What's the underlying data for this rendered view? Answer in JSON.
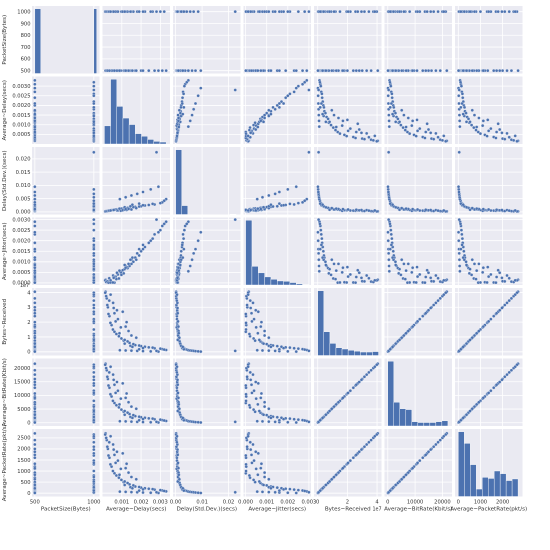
{
  "chart_data": {
    "type": "scatter",
    "subtype": "pairplot",
    "diagonal": "histogram",
    "grid": true,
    "colors": {
      "marker": "#4c72b0",
      "panel_background": "#eaeaf2",
      "grid": "#ffffff"
    },
    "variables": [
      {
        "key": "packet_size",
        "label": "PacketSize(Bytes)",
        "range": [
          476,
          1048
        ],
        "y_ticks": [
          500,
          600,
          700,
          800,
          900,
          1000
        ],
        "x_ticks": [
          500,
          1000
        ],
        "x_tick_labels": [
          "500",
          "1000"
        ],
        "offset_label": ""
      },
      {
        "key": "avg_delay",
        "label": "Average~Delay(secs)",
        "range": [
          0,
          0.0035
        ],
        "y_ticks": [
          0.0005,
          0.001,
          0.0015,
          0.002,
          0.0025,
          0.003
        ],
        "y_tick_labels": [
          "0.0005",
          "0.0010",
          "0.0015",
          "0.0020",
          "0.0025",
          "0.0030"
        ],
        "x_ticks": [
          0.001,
          0.002,
          0.003
        ],
        "x_tick_labels": [
          "0.001",
          "0.002",
          "0.003"
        ],
        "offset_label": ""
      },
      {
        "key": "delay_std",
        "label": "Delay(Std.Dev.)(secs)",
        "range": [
          -0.001,
          0.0245
        ],
        "y_ticks": [
          0,
          0.005,
          0.01,
          0.015,
          0.02
        ],
        "y_tick_labels": [
          "0.000",
          "0.005",
          "0.010",
          "0.015",
          "0.020"
        ],
        "x_ticks": [
          0,
          0.01,
          0.02
        ],
        "x_tick_labels": [
          "0.00",
          "0.01",
          "0.02"
        ],
        "offset_label": ""
      },
      {
        "key": "avg_jitter",
        "label": "Average~Jitter(secs)",
        "range": [
          -0.0001,
          0.0031
        ],
        "y_ticks": [
          0,
          0.0005,
          0.001,
          0.0015,
          0.002,
          0.0025,
          0.003
        ],
        "y_tick_labels": [
          "0.0000",
          "0.0005",
          "0.0010",
          "0.0015",
          "0.0020",
          "0.0025",
          "0.0030"
        ],
        "x_ticks": [
          0,
          0.001,
          0.002,
          0.003
        ],
        "x_tick_labels": [
          "0.000",
          "0.001",
          "0.002",
          "0.003"
        ],
        "offset_label": ""
      },
      {
        "key": "bytes_received",
        "label": "Bytes~Received",
        "range": [
          -2500000,
          43000000
        ],
        "y_ticks": [
          0,
          10000000,
          20000000,
          30000000,
          40000000
        ],
        "y_tick_labels": [
          "0",
          "1",
          "2",
          "3",
          "4"
        ],
        "x_ticks": [
          0,
          20000000,
          40000000
        ],
        "x_tick_labels": [
          "0",
          "2",
          "4"
        ],
        "offset_label": "1e7"
      },
      {
        "key": "avg_bitrate",
        "label": "Average~BitRate(Kbit/s)",
        "range": [
          -1200,
          23500
        ],
        "y_ticks": [
          0,
          5000,
          10000,
          15000,
          20000
        ],
        "y_tick_labels": [
          "0",
          "5000",
          "10000",
          "15000",
          "20000"
        ],
        "x_ticks": [
          0,
          10000,
          20000
        ],
        "x_tick_labels": [
          "0",
          "10000",
          "20000"
        ],
        "offset_label": ""
      },
      {
        "key": "avg_packetrate",
        "label": "Average~PacketRate(pkt/s)",
        "range": [
          -150,
          2900
        ],
        "y_ticks": [
          0,
          500,
          1000,
          1500,
          2000,
          2500
        ],
        "y_tick_labels": [
          "0",
          "500",
          "1000",
          "1500",
          "2000",
          "2500"
        ],
        "x_ticks": [
          0,
          1000,
          2000
        ],
        "x_tick_labels": [
          "0",
          "1000",
          "2000"
        ],
        "offset_label": ""
      }
    ],
    "histograms": [
      {
        "bins": [
          500,
          550,
          600,
          650,
          700,
          750,
          800,
          850,
          900,
          950,
          1000,
          1024
        ],
        "counts": [
          150,
          0,
          0,
          0,
          0,
          0,
          0,
          0,
          0,
          0,
          150
        ]
      },
      {
        "bins": [
          0.0001,
          0.00042,
          0.00074,
          0.00106,
          0.00138,
          0.0017,
          0.00202,
          0.00234,
          0.00266,
          0.00298,
          0.0033
        ],
        "counts": [
          28,
          100,
          58,
          40,
          30,
          16,
          12,
          7,
          4,
          3
        ]
      },
      {
        "bins": [
          0,
          0.00228,
          0.00456,
          0.00684,
          0.00912,
          0.0114,
          0.01368,
          0.01596,
          0.01824,
          0.02052,
          0.0228
        ],
        "counts": [
          262,
          36,
          0,
          0,
          0,
          0,
          0,
          0,
          0,
          1
        ]
      },
      {
        "bins": [
          0,
          0.0003,
          0.0006,
          0.0009,
          0.0012,
          0.0015,
          0.0018,
          0.0021,
          0.0024,
          0.0027,
          0.003
        ],
        "counts": [
          160,
          46,
          30,
          20,
          14,
          10,
          9,
          6,
          3,
          1
        ]
      },
      {
        "bins": [
          0,
          4100000,
          8200000,
          12300000,
          16400000,
          20500000,
          24600000,
          28700000,
          32800000,
          36900000,
          41000000
        ],
        "counts": [
          150,
          55,
          28,
          18,
          15,
          12,
          10,
          8,
          8,
          9
        ]
      },
      {
        "bins": [
          0,
          2200,
          4400,
          6600,
          8800,
          11000,
          13200,
          15400,
          17600,
          19800,
          22000
        ],
        "counts": [
          150,
          55,
          40,
          38,
          10,
          8,
          8,
          8,
          10,
          12
        ]
      },
      {
        "bins": [
          0,
          270,
          540,
          810,
          1080,
          1350,
          1620,
          1890,
          2160,
          2430,
          2700
        ],
        "counts": [
          122,
          100,
          60,
          14,
          36,
          34,
          48,
          43,
          30,
          33
        ]
      }
    ],
    "points": {
      "columns": [
        "packet_size",
        "avg_delay",
        "delay_std",
        "avg_jitter",
        "bytes_received",
        "avg_bitrate",
        "avg_packetrate"
      ],
      "rows": [
        [
          500,
          0.00016,
          0.00019,
          0.00015,
          40500000,
          21600,
          2700
        ],
        [
          1000,
          0.00014,
          0.00016,
          0.00012,
          39800000,
          21200,
          2650
        ],
        [
          500,
          0.00022,
          0.00027,
          6e-05,
          36000000,
          19200,
          2400
        ],
        [
          1000,
          0.00019,
          0.00022,
          4e-05,
          37500000,
          20000,
          2500
        ],
        [
          500,
          0.00028,
          0.00036,
          8e-05,
          30000000,
          16000,
          2000
        ],
        [
          1000,
          0.00025,
          0.00031,
          7e-05,
          31500000,
          16800,
          2100
        ],
        [
          500,
          0.00036,
          0.00048,
          2e-05,
          24000000,
          12800,
          1600
        ],
        [
          1000,
          0.00031,
          0.00042,
          1e-05,
          25500000,
          13600,
          1700
        ],
        [
          500,
          0.00047,
          0.00063,
          3e-05,
          18000000,
          9600,
          1200
        ],
        [
          1000,
          0.00041,
          0.00055,
          2e-05,
          19500000,
          10400,
          1300
        ],
        [
          500,
          0.00062,
          0.00085,
          1e-05,
          13500000,
          7200,
          900
        ],
        [
          1000,
          0.00054,
          0.00072,
          2e-05,
          15000000,
          8000,
          1000
        ],
        [
          500,
          0.00085,
          0.0011,
          0.00021,
          10500000,
          5600,
          700
        ],
        [
          1000,
          0.00072,
          0.00095,
          0.00018,
          12000000,
          6400,
          800
        ],
        [
          500,
          0.0011,
          0.0013,
          0.00045,
          7500000,
          4000,
          500
        ],
        [
          1000,
          0.00098,
          0.0012,
          0.00038,
          9000000,
          4800,
          600
        ],
        [
          500,
          0.0014,
          0.0016,
          0.0008,
          6000000,
          3200,
          400
        ],
        [
          1000,
          0.0013,
          0.0015,
          0.0007,
          7000000,
          3700,
          460
        ],
        [
          500,
          0.0017,
          0.0019,
          0.0012,
          4500000,
          2400,
          300
        ],
        [
          1000,
          0.0016,
          0.0018,
          0.001,
          5200000,
          2800,
          350
        ],
        [
          500,
          0.002,
          0.0021,
          0.0015,
          3800000,
          2000,
          250
        ],
        [
          1000,
          0.0019,
          0.002,
          0.0013,
          4200000,
          2200,
          280
        ],
        [
          500,
          0.0024,
          0.0026,
          0.0019,
          3000000,
          1600,
          200
        ],
        [
          1000,
          0.0022,
          0.0024,
          0.0017,
          3400000,
          1800,
          225
        ],
        [
          500,
          0.0027,
          0.0028,
          0.0023,
          2400000,
          1280,
          160
        ],
        [
          1000,
          0.0026,
          0.003,
          0.0021,
          2800000,
          1500,
          185
        ],
        [
          500,
          0.0031,
          0.0036,
          0.0027,
          1800000,
          960,
          120
        ],
        [
          1000,
          0.003,
          0.0033,
          0.0025,
          2100000,
          1120,
          140
        ],
        [
          500,
          0.0033,
          0.0048,
          0.0029,
          1200000,
          640,
          80
        ],
        [
          1000,
          0.0032,
          0.0042,
          0.0028,
          1500000,
          800,
          100
        ],
        [
          500,
          0.0009,
          0.0048,
          0.00055,
          1050000,
          560,
          70
        ],
        [
          1000,
          0.0012,
          0.0055,
          0.0008,
          900000,
          480,
          60
        ],
        [
          500,
          0.0015,
          0.0062,
          0.0011,
          750000,
          400,
          50
        ],
        [
          1000,
          0.0018,
          0.0068,
          0.0014,
          600000,
          320,
          40
        ],
        [
          500,
          0.0021,
          0.0075,
          0.0016,
          450000,
          240,
          30
        ],
        [
          1000,
          0.0025,
          0.0085,
          0.002,
          300000,
          160,
          20
        ],
        [
          500,
          0.0029,
          0.0095,
          0.0024,
          150000,
          80,
          10
        ],
        [
          1000,
          0.0008,
          0.0005,
          0.0004,
          22000000,
          11700,
          1470
        ],
        [
          500,
          0.00095,
          0.0004,
          0.0005,
          16500000,
          8800,
          1100
        ],
        [
          1000,
          0.00105,
          0.0006,
          0.0006,
          27000000,
          14400,
          1800
        ],
        [
          500,
          0.00125,
          0.0007,
          0.00075,
          20000000,
          10700,
          1330
        ],
        [
          1000,
          0.0015,
          0.0009,
          0.0009,
          11000000,
          5900,
          730
        ],
        [
          500,
          0.00055,
          0.00065,
          0.00035,
          33000000,
          17600,
          2200
        ],
        [
          1000,
          0.00115,
          0.0008,
          0.00065,
          8000000,
          4300,
          530
        ],
        [
          500,
          0.00075,
          0.00058,
          0.00048,
          28000000,
          14900,
          1870
        ],
        [
          1000,
          0.0028,
          0.0225,
          0.003,
          600000,
          320,
          40
        ],
        [
          500,
          0.00135,
          0.0011,
          0.0009,
          14000000,
          7500,
          930
        ],
        [
          1000,
          0.00035,
          0.00045,
          0.00022,
          34500000,
          18400,
          2300
        ],
        [
          500,
          0.00175,
          0.0014,
          0.0011,
          9500000,
          5100,
          630
        ],
        [
          1000,
          0.00068,
          0.0009,
          0.0003,
          20500000,
          10900,
          1370
        ],
        [
          500,
          0.00115,
          0.00175,
          0.00085,
          5500000,
          2900,
          370
        ],
        [
          1000,
          0.0021,
          0.0025,
          0.0018,
          2500000,
          1330,
          170
        ],
        [
          500,
          0.00062,
          0.00078,
          0.00028,
          26000000,
          13900,
          1730
        ],
        [
          1000,
          0.00145,
          0.0021,
          0.0011,
          4000000,
          2100,
          270
        ],
        [
          500,
          0.00088,
          0.0012,
          0.00058,
          12500000,
          6700,
          830
        ],
        [
          1000,
          0.0019,
          0.0031,
          0.0016,
          1700000,
          900,
          115
        ],
        [
          500,
          0.0012,
          0.00105,
          0.00072,
          17000000,
          9100,
          1130
        ],
        [
          1000,
          0.00042,
          0.00052,
          0.00012,
          38500000,
          20500,
          2570
        ],
        [
          500,
          0.00155,
          0.0027,
          0.0012,
          3300000,
          1760,
          220
        ],
        [
          1000,
          0.00058,
          0.0007,
          0.00024,
          29500000,
          15700,
          1970
        ]
      ]
    }
  }
}
